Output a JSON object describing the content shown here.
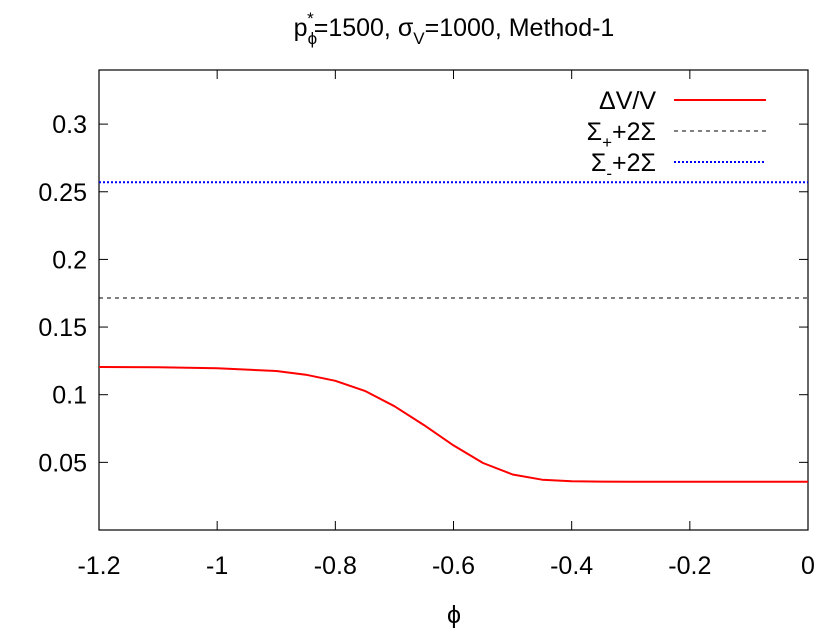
{
  "chart_data": {
    "type": "line",
    "title": {
      "p": "p",
      "p_sub": "ϕ",
      "p_sup": "*",
      "p_val": "=1500, ",
      "sigma": "σ",
      "sigma_sub": "V",
      "rest": "=1000, Method-1"
    },
    "xlabel": "ϕ",
    "ylabel": "",
    "xlim": [
      -1.2,
      0
    ],
    "ylim": [
      0,
      0.34
    ],
    "xticks": [
      -1.2,
      -1.0,
      -0.8,
      -0.6,
      -0.4,
      -0.2,
      0
    ],
    "xtick_labels": [
      "-1.2",
      "-1",
      "-0.8",
      "-0.6",
      "-0.4",
      "-0.2",
      "0"
    ],
    "yticks": [
      0.05,
      0.1,
      0.15,
      0.2,
      0.25,
      0.3
    ],
    "ytick_labels": [
      "0.05",
      "0.1",
      "0.15",
      "0.2",
      "0.25",
      "0.3"
    ],
    "grid": false,
    "legend_position": "top-right",
    "series": [
      {
        "name": "ΔV/V",
        "legend": {
          "main": "ΔV/V",
          "sub": "",
          "tail": ""
        },
        "color": "#ff0000",
        "style": "solid",
        "x": [
          -1.2,
          -1.1,
          -1.0,
          -0.9,
          -0.85,
          -0.8,
          -0.75,
          -0.7,
          -0.65,
          -0.6,
          -0.55,
          -0.5,
          -0.45,
          -0.4,
          -0.35,
          -0.3,
          -0.2,
          -0.1,
          0
        ],
        "y": [
          0.1205,
          0.1203,
          0.1196,
          0.1175,
          0.1148,
          0.1103,
          0.1028,
          0.0915,
          0.0775,
          0.0625,
          0.0495,
          0.041,
          0.0372,
          0.0361,
          0.0358,
          0.0357,
          0.0357,
          0.0357,
          0.0357
        ]
      },
      {
        "name": "Σ+2Σ (plus)",
        "legend": {
          "main": "Σ",
          "sub": "+",
          "tail": "+2Σ"
        },
        "color": "#000000",
        "style": "dashed",
        "x": [
          -1.2,
          0
        ],
        "y": [
          0.1715,
          0.1715
        ]
      },
      {
        "name": "Σ+2Σ (minus)",
        "legend": {
          "main": "Σ",
          "sub": "-",
          "tail": "+2Σ"
        },
        "color": "#0000ff",
        "style": "dotted",
        "x": [
          -1.2,
          0
        ],
        "y": [
          0.257,
          0.257
        ]
      }
    ]
  }
}
